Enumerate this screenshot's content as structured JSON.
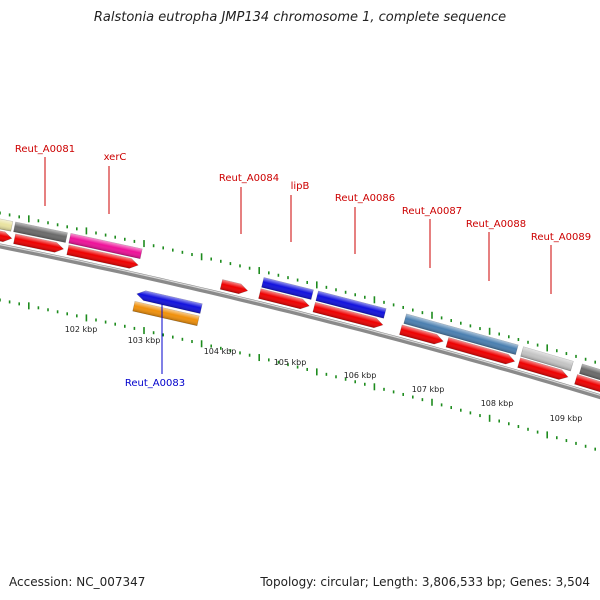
{
  "header": {
    "title": "Ralstonia eutropha JMP134 chromosome 1, complete sequence"
  },
  "footer": {
    "accession": "Accession: NC_007347",
    "topology": "Topology: circular; Length: 3,806,533 bp; Genes: 3,504"
  },
  "colors": {
    "forward_label": "#cc0000",
    "reverse_label": "#0000cc",
    "cds_red": "#ee0000",
    "blue_gene": "#1111dd",
    "magenta_gene": "#ee1199",
    "steel_gene": "#4a7fb0",
    "light_gray_gene": "#c4c4c4",
    "dark_gray_gene": "#6a6a6a",
    "khaki_gene": "#e9e3a0",
    "orange_gene": "#f0900a",
    "tick": "#1e8c1e",
    "backbone": "#8a8a8a"
  },
  "gene_labels": [
    {
      "text": "Reut_A0081",
      "strand": "forward"
    },
    {
      "text": "xerC",
      "strand": "forward"
    },
    {
      "text": "Reut_A0084",
      "strand": "forward"
    },
    {
      "text": "lipB",
      "strand": "forward"
    },
    {
      "text": "Reut_A0086",
      "strand": "forward"
    },
    {
      "text": "Reut_A0087",
      "strand": "forward"
    },
    {
      "text": "Reut_A0088",
      "strand": "forward"
    },
    {
      "text": "Reut_A0089",
      "strand": "forward"
    },
    {
      "text": "Reut_A0083",
      "strand": "reverse"
    }
  ],
  "scale_labels": [
    "102 kbp",
    "103 kbp",
    "104 kbp",
    "105 kbp",
    "106 kbp",
    "107 kbp",
    "108 kbp",
    "109 kbp"
  ]
}
